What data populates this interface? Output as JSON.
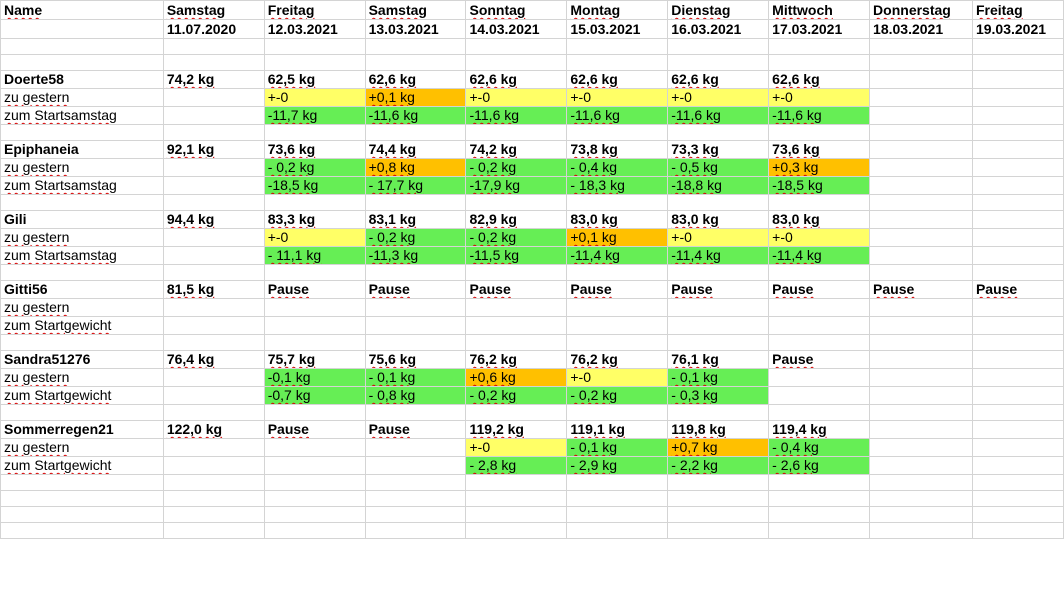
{
  "header": {
    "name_label": "Name",
    "days": [
      "Samstag",
      "Freitag",
      "Samstag",
      "Sonntag",
      "Montag",
      "Dienstag",
      "Mittwoch",
      "Donnerstag",
      "Freitag"
    ],
    "dates": [
      "11.07.2020",
      "12.03.2021",
      "13.03.2021",
      "14.03.2021",
      "15.03.2021",
      "16.03.2021",
      "17.03.2021",
      "18.03.2021",
      "19.03.2021"
    ]
  },
  "people": [
    {
      "name": "Doerte58",
      "weights": [
        "74,2 kg",
        "62,5 kg",
        "62,6 kg",
        "62,6 kg",
        "62,6 kg",
        "62,6 kg",
        "62,6 kg",
        "",
        ""
      ],
      "row2_label": "zu gestern",
      "row2": [
        "",
        "+-0",
        "+0,1 kg",
        "+-0",
        "+-0",
        "+-0",
        "+-0",
        "",
        ""
      ],
      "row2_colors": [
        "",
        "y",
        "o",
        "y",
        "y",
        "y",
        "y",
        "",
        ""
      ],
      "row3_label": "zum Startsamstag",
      "row3": [
        "",
        "-11,7 kg",
        "-11,6 kg",
        "-11,6 kg",
        "-11,6 kg",
        "-11,6 kg",
        "-11,6 kg",
        "",
        ""
      ],
      "row3_colors": [
        "",
        "g",
        "g",
        "g",
        "g",
        "g",
        "g",
        "",
        ""
      ]
    },
    {
      "name": "Epiphaneia",
      "weights": [
        "92,1 kg",
        "73,6 kg",
        "74,4 kg",
        "74,2 kg",
        "73,8 kg",
        "73,3 kg",
        "73,6 kg",
        "",
        ""
      ],
      "row2_label": "zu gestern",
      "row2": [
        "",
        "- 0,2 kg",
        "+0,8 kg",
        "- 0,2 kg",
        "- 0,4 kg",
        "- 0,5 kg",
        "+0,3 kg",
        "",
        ""
      ],
      "row2_colors": [
        "",
        "g",
        "o",
        "g",
        "g",
        "g",
        "o",
        "",
        ""
      ],
      "row3_label": "zum Startsamstag",
      "row3": [
        "",
        "-18,5 kg",
        "- 17,7 kg",
        "-17,9 kg",
        "- 18,3 kg",
        "-18,8 kg",
        "-18,5 kg",
        "",
        ""
      ],
      "row3_colors": [
        "",
        "g",
        "g",
        "g",
        "g",
        "g",
        "g",
        "",
        ""
      ]
    },
    {
      "name": "Gili",
      "weights": [
        "94,4 kg",
        "83,3 kg",
        "83,1 kg",
        "82,9 kg",
        "83,0 kg",
        "83,0 kg",
        "83,0 kg",
        "",
        ""
      ],
      "row2_label": "zu gestern",
      "row2": [
        "",
        "+-0",
        "- 0,2 kg",
        "- 0,2 kg",
        "+0,1 kg",
        "+-0",
        "+-0",
        "",
        ""
      ],
      "row2_colors": [
        "",
        "y",
        "g",
        "g",
        "o",
        "y",
        "y",
        "",
        ""
      ],
      "row3_label": "zum Startsamstag",
      "row3": [
        "",
        "- 11,1 kg",
        "-11,3 kg",
        "-11,5 kg",
        "-11,4 kg",
        "-11,4 kg",
        "-11,4 kg",
        "",
        ""
      ],
      "row3_colors": [
        "",
        "g",
        "g",
        "g",
        "g",
        "g",
        "g",
        "",
        ""
      ]
    },
    {
      "name": "Gitti56",
      "weights": [
        "81,5 kg",
        "Pause",
        "Pause",
        "Pause",
        "Pause",
        "Pause",
        "Pause",
        "Pause",
        "Pause"
      ],
      "row2_label": "zu gestern",
      "row2": [
        "",
        "",
        "",
        "",
        "",
        "",
        "",
        "",
        ""
      ],
      "row2_colors": [
        "",
        "",
        "",
        "",
        "",
        "",
        "",
        "",
        ""
      ],
      "row3_label": "zum Startgewicht",
      "row3": [
        "",
        "",
        "",
        "",
        "",
        "",
        "",
        "",
        ""
      ],
      "row3_colors": [
        "",
        "",
        "",
        "",
        "",
        "",
        "",
        "",
        ""
      ]
    },
    {
      "name": "Sandra51276",
      "weights": [
        "76,4 kg",
        "75,7 kg",
        "75,6 kg",
        "76,2 kg",
        "76,2 kg",
        "76,1 kg",
        "Pause",
        "",
        ""
      ],
      "row2_label": "zu gestern",
      "row2": [
        "",
        "-0,1 kg",
        "- 0,1 kg",
        "+0,6 kg",
        "+-0",
        "- 0,1 kg",
        "",
        "",
        ""
      ],
      "row2_colors": [
        "",
        "g",
        "g",
        "o",
        "y",
        "g",
        "",
        "",
        ""
      ],
      "row3_label": "zum Startgewicht",
      "row3": [
        "",
        "-0,7 kg",
        "- 0,8 kg",
        "- 0,2 kg",
        "- 0,2 kg",
        "- 0,3 kg",
        "",
        "",
        ""
      ],
      "row3_colors": [
        "",
        "g",
        "g",
        "g",
        "g",
        "g",
        "",
        "",
        ""
      ]
    },
    {
      "name": "Sommerregen21",
      "weights": [
        "122,0 kg",
        "Pause",
        "Pause",
        "119,2 kg",
        "119,1 kg",
        "119,8 kg",
        "119,4 kg",
        "",
        ""
      ],
      "row2_label": "zu gestern",
      "row2": [
        "",
        "",
        "",
        "+-0",
        "- 0,1 kg",
        "+0,7 kg",
        "- 0,4 kg",
        "",
        ""
      ],
      "row2_colors": [
        "",
        "",
        "",
        "y",
        "g",
        "o",
        "g",
        "",
        ""
      ],
      "row3_label": "zum Startgewicht",
      "row3": [
        "",
        "",
        "",
        "- 2,8 kg",
        "- 2,9 kg",
        "- 2,2 kg",
        "- 2,6 kg",
        "",
        ""
      ],
      "row3_colors": [
        "",
        "",
        "",
        "g",
        "g",
        "g",
        "g",
        "",
        ""
      ]
    }
  ],
  "colors": {
    "yellow": "#ffff66",
    "orange": "#ffc000",
    "green": "#66ee55",
    "grid": "#d4d4d4"
  }
}
